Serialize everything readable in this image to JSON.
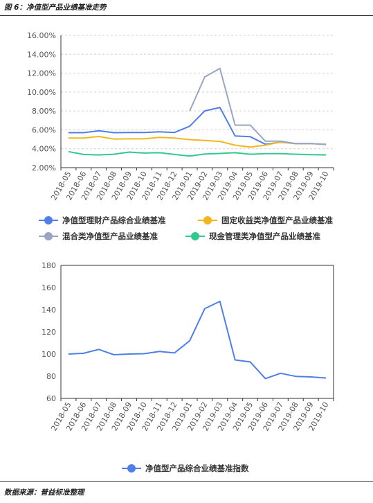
{
  "header": {
    "title": "图 6：净值型产品业绩基准走势"
  },
  "footer": {
    "source": "数据来源：普益标准整理"
  },
  "chart_data": [
    {
      "type": "line",
      "categories": [
        "2018-05",
        "2018-06",
        "2018-07",
        "2018-08",
        "2018-09",
        "2018-10",
        "2018-11",
        "2018-12",
        "2019-01",
        "2019-02",
        "2019-03",
        "2019-04",
        "2019-05",
        "2019-06",
        "2019-07",
        "2019-08",
        "2019-09",
        "2019-10"
      ],
      "ylim": [
        0.02,
        0.16
      ],
      "yticks": [
        "2.00%",
        "4.00%",
        "6.00%",
        "8.00%",
        "10.00%",
        "12.00%",
        "14.00%",
        "16.00%"
      ],
      "grid": true,
      "legend_position": "bottom",
      "series": [
        {
          "name": "净值型理财产品综合业绩基准",
          "color": "#4f7fe6",
          "values": [
            0.057,
            0.057,
            0.059,
            0.057,
            0.0572,
            0.0572,
            0.058,
            0.0572,
            0.0638,
            0.08,
            0.0837,
            0.0536,
            0.0528,
            0.0448,
            0.047,
            0.0455,
            0.0455,
            0.0448
          ]
        },
        {
          "name": "固定收益类净值型产品业绩基准",
          "color": "#f2b71e",
          "values": [
            0.0513,
            0.0513,
            0.053,
            0.0503,
            0.0505,
            0.0505,
            0.052,
            0.0513,
            0.0497,
            0.0488,
            0.0478,
            0.0438,
            0.0418,
            0.0438,
            0.0472,
            0.0453,
            0.0455,
            0.0448
          ]
        },
        {
          "name": "混合类净值型产品业绩基准",
          "color": "#9aa5c4",
          "values": [
            null,
            null,
            null,
            null,
            null,
            null,
            null,
            null,
            0.08,
            0.116,
            0.125,
            0.065,
            0.065,
            0.048,
            0.048,
            0.0455,
            0.0455,
            0.0445
          ]
        },
        {
          "name": "现金管理类净值型产品业绩基准",
          "color": "#31c98e",
          "values": [
            0.037,
            0.034,
            0.0335,
            0.0342,
            0.0365,
            0.0355,
            0.0358,
            0.034,
            0.0323,
            0.0345,
            0.035,
            0.0358,
            0.0342,
            0.0348,
            0.0348,
            0.0342,
            0.0338,
            0.0335
          ]
        }
      ]
    },
    {
      "type": "line",
      "categories": [
        "2018-05",
        "2018-06",
        "2018-07",
        "2018-08",
        "2018-09",
        "2018-10",
        "2018-11",
        "2018-12",
        "2019-01",
        "2019-02",
        "2019-03",
        "2019-04",
        "2019-05",
        "2019-06",
        "2019-07",
        "2019-08",
        "2019-09",
        "2019-10"
      ],
      "ylim": [
        60,
        180
      ],
      "yticks": [
        "60",
        "80",
        "100",
        "120",
        "140",
        "160",
        "180"
      ],
      "grid": false,
      "legend_position": "bottom",
      "series": [
        {
          "name": "净值型产品综合业绩基准指数",
          "color": "#4f7fe6",
          "values": [
            100,
            100.7,
            104.2,
            99.4,
            100,
            100.3,
            102.4,
            101,
            112,
            141,
            147.5,
            94.7,
            92.9,
            77.9,
            82.6,
            79.9,
            79.4,
            78.4
          ]
        }
      ]
    }
  ]
}
